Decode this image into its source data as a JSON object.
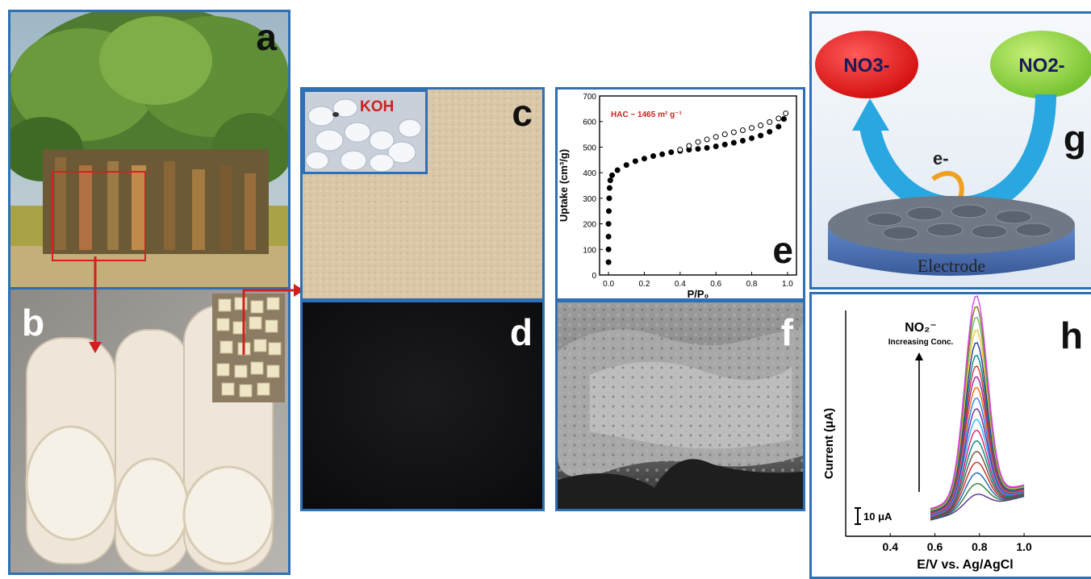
{
  "panels": {
    "a": {
      "label": "a"
    },
    "b": {
      "label": "b"
    },
    "c": {
      "label": "c",
      "inset_label": "KOH"
    },
    "d": {
      "label": "d"
    },
    "e": {
      "label": "e"
    },
    "f": {
      "label": "f"
    },
    "g": {
      "label": "g",
      "bubble_left": "NO3-",
      "bubble_right": "NO2-",
      "electron": "e-",
      "electrode": "Electrode"
    },
    "h": {
      "label": "h"
    }
  },
  "colors": {
    "border": "#2f6fb3",
    "accent_red": "#d12020",
    "nitrate_bubble": "#e01818",
    "nitrite_bubble": "#8fd33a",
    "arrow_blue": "#29a7e0",
    "electron_arrow": "#f0a020",
    "electrode_blue": "#4f75b8"
  },
  "chart_data": [
    {
      "type": "scatter",
      "panel": "e",
      "annotation": "HAC ~ 1465 m² g⁻¹",
      "xlabel": "P/P₀",
      "ylabel": "Uptake (cm³/g)",
      "xlim": [
        -0.05,
        1.05
      ],
      "ylim": [
        0,
        700
      ],
      "xticks": [
        "0.0",
        "0.2",
        "0.4",
        "0.6",
        "0.8",
        "1.0"
      ],
      "yticks": [
        "0",
        "100",
        "200",
        "300",
        "400",
        "500",
        "600",
        "700"
      ],
      "series": [
        {
          "marker": "filled",
          "x": [
            0.0,
            0.0,
            0.0,
            0.0,
            0.002,
            0.004,
            0.006,
            0.01,
            0.02,
            0.05,
            0.1,
            0.15,
            0.2,
            0.25,
            0.3,
            0.35,
            0.4,
            0.45,
            0.5,
            0.55,
            0.6,
            0.65,
            0.7,
            0.75,
            0.8,
            0.85,
            0.9,
            0.95,
            0.98
          ],
          "y": [
            50,
            100,
            150,
            200,
            250,
            300,
            340,
            370,
            390,
            410,
            430,
            445,
            455,
            465,
            472,
            480,
            485,
            490,
            493,
            497,
            503,
            510,
            517,
            525,
            535,
            545,
            560,
            580,
            610
          ]
        },
        {
          "marker": "open",
          "x": [
            0.4,
            0.45,
            0.5,
            0.55,
            0.6,
            0.65,
            0.7,
            0.75,
            0.8,
            0.85,
            0.9,
            0.95,
            0.99
          ],
          "y": [
            490,
            505,
            520,
            530,
            540,
            550,
            558,
            566,
            575,
            585,
            598,
            612,
            632
          ]
        }
      ]
    },
    {
      "type": "line",
      "panel": "h",
      "title": "NO₂⁻",
      "annotation": "Increasing Conc.",
      "scale_bar": "10 μA",
      "xlabel": "E/V vs. Ag/AgCl",
      "ylabel": "Current (μA)",
      "xlim": [
        0.2,
        1.3
      ],
      "xticks": [
        "0.4",
        "0.6",
        "0.8",
        "1.0"
      ],
      "series": [
        {
          "color": "#5a2d91",
          "peak": 0.07
        },
        {
          "color": "#2e7d32",
          "peak": 0.12
        },
        {
          "color": "#1565c0",
          "peak": 0.17
        },
        {
          "color": "#c62828",
          "peak": 0.22
        },
        {
          "color": "#6d4c41",
          "peak": 0.27
        },
        {
          "color": "#00897b",
          "peak": 0.32
        },
        {
          "color": "#e91e63",
          "peak": 0.37
        },
        {
          "color": "#29b6f6",
          "peak": 0.42
        },
        {
          "color": "#7b1fa2",
          "peak": 0.47
        },
        {
          "color": "#1e88e5",
          "peak": 0.52
        },
        {
          "color": "#ef6c00",
          "peak": 0.57
        },
        {
          "color": "#8e24aa",
          "peak": 0.62
        },
        {
          "color": "#d32f2f",
          "peak": 0.67
        },
        {
          "color": "#00838f",
          "peak": 0.72
        },
        {
          "color": "#283593",
          "peak": 0.78
        },
        {
          "color": "#fbc02d",
          "peak": 0.84
        },
        {
          "color": "#66bb6a",
          "peak": 0.9
        },
        {
          "color": "#827717",
          "peak": 0.95
        },
        {
          "color": "#e040fb",
          "peak": 1.0
        }
      ]
    }
  ]
}
